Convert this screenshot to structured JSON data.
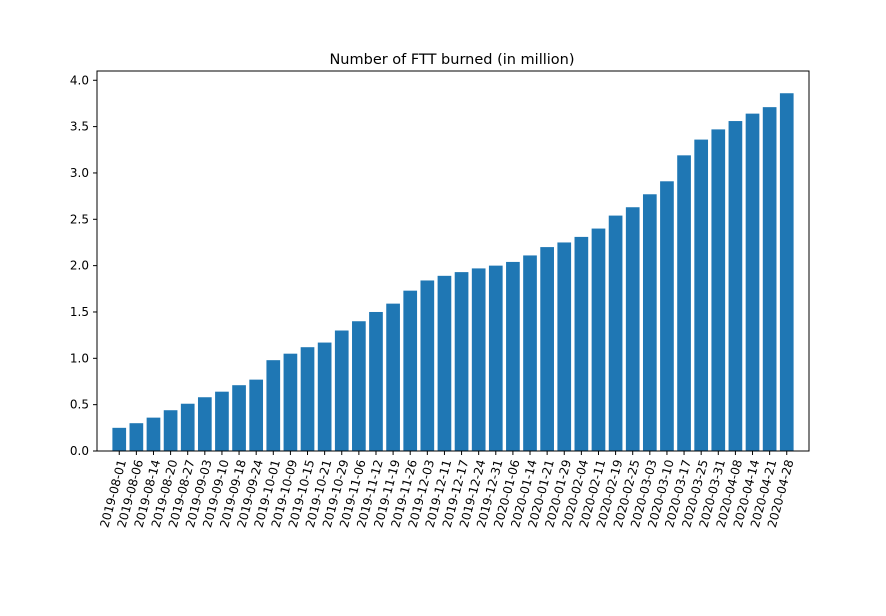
{
  "chart_data": {
    "type": "bar",
    "title": "Number of FTT burned (in million)",
    "xlabel": "",
    "ylabel": "",
    "ylim": [
      0,
      4.1
    ],
    "yticks": [
      "0.0",
      "0.5",
      "1.0",
      "1.5",
      "2.0",
      "2.5",
      "3.0",
      "3.5",
      "4.0"
    ],
    "grid": false,
    "bar_color": "#1f77b4",
    "categories": [
      "2019-08-01",
      "2019-08-06",
      "2019-08-14",
      "2019-08-20",
      "2019-08-27",
      "2019-09-03",
      "2019-09-10",
      "2019-09-18",
      "2019-09-24",
      "2019-10-01",
      "2019-10-09",
      "2019-10-15",
      "2019-10-21",
      "2019-10-29",
      "2019-11-06",
      "2019-11-12",
      "2019-11-19",
      "2019-11-26",
      "2019-12-03",
      "2019-12-11",
      "2019-12-17",
      "2019-12-24",
      "2019-12-31",
      "2020-01-06",
      "2020-01-14",
      "2020-01-21",
      "2020-01-29",
      "2020-02-04",
      "2020-02-11",
      "2020-02-19",
      "2020-02-25",
      "2020-03-03",
      "2020-03-10",
      "2020-03-17",
      "2020-03-25",
      "2020-03-31",
      "2020-04-08",
      "2020-04-14",
      "2020-04-21",
      "2020-04-28"
    ],
    "values": [
      0.25,
      0.3,
      0.36,
      0.44,
      0.51,
      0.58,
      0.64,
      0.71,
      0.77,
      0.98,
      1.05,
      1.12,
      1.17,
      1.3,
      1.4,
      1.5,
      1.59,
      1.73,
      1.84,
      1.89,
      1.93,
      1.97,
      2.0,
      2.04,
      2.11,
      2.2,
      2.25,
      2.31,
      2.4,
      2.54,
      2.63,
      2.77,
      2.91,
      3.19,
      3.36,
      3.47,
      3.56,
      3.64,
      3.71,
      3.86
    ]
  }
}
